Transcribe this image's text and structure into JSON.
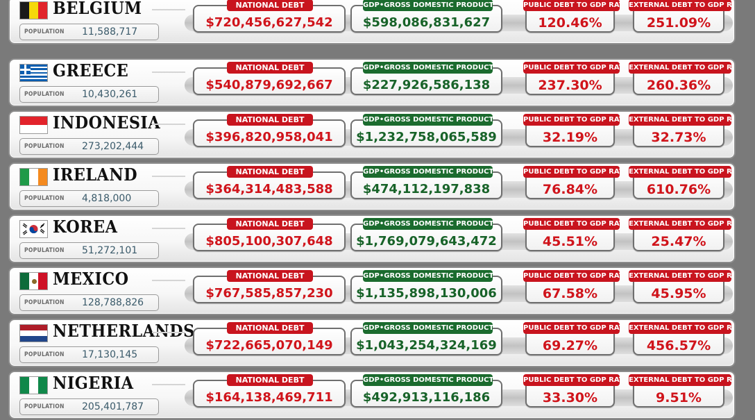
{
  "labels": {
    "population": "POPULATION",
    "national_debt": "NATIONAL DEBT",
    "gdp": "GDP•GROSS DOMESTIC PRODUCT",
    "public_ratio": "PUBLIC DEBT TO GDP RATIO",
    "external_ratio": "EXTERNAL DEBT TO GDP RATIO"
  },
  "colors": {
    "debt": "#d0141b",
    "gdp": "#186329",
    "badge_red": "#c8141e",
    "badge_green": "#1b6b2e"
  },
  "countries": [
    {
      "name": "BELGIUM",
      "flag": "belgium-flag-icon",
      "population": "11,588,717",
      "national_debt": "$720,456,627,542",
      "gdp": "$598,086,831,627",
      "public_debt_ratio": "120.46%",
      "external_debt_ratio": "251.09%"
    },
    {
      "name": "GREECE",
      "flag": "greece-flag-icon",
      "population": "10,430,261",
      "national_debt": "$540,879,692,667",
      "gdp": "$227,926,586,138",
      "public_debt_ratio": "237.30%",
      "external_debt_ratio": "260.36%"
    },
    {
      "name": "INDONESIA",
      "flag": "indonesia-flag-icon",
      "population": "273,202,444",
      "national_debt": "$396,820,958,041",
      "gdp": "$1,232,758,065,589",
      "public_debt_ratio": "32.19%",
      "external_debt_ratio": "32.73%"
    },
    {
      "name": "IRELAND",
      "flag": "ireland-flag-icon",
      "population": "4,818,000",
      "national_debt": "$364,314,483,588",
      "gdp": "$474,112,197,838",
      "public_debt_ratio": "76.84%",
      "external_debt_ratio": "610.76%"
    },
    {
      "name": "KOREA",
      "flag": "korea-flag-icon",
      "population": "51,272,101",
      "national_debt": "$805,100,307,648",
      "gdp": "$1,769,079,643,472",
      "public_debt_ratio": "45.51%",
      "external_debt_ratio": "25.47%"
    },
    {
      "name": "MEXICO",
      "flag": "mexico-flag-icon",
      "population": "128,788,826",
      "national_debt": "$767,585,857,230",
      "gdp": "$1,135,898,130,006",
      "public_debt_ratio": "67.58%",
      "external_debt_ratio": "45.95%"
    },
    {
      "name": "NETHERLANDS",
      "flag": "netherlands-flag-icon",
      "population": "17,130,145",
      "national_debt": "$722,665,070,149",
      "gdp": "$1,043,254,324,169",
      "public_debt_ratio": "69.27%",
      "external_debt_ratio": "456.57%"
    },
    {
      "name": "NIGERIA",
      "flag": "nigeria-flag-icon",
      "population": "205,401,787",
      "national_debt": "$164,138,469,711",
      "gdp": "$492,913,116,186",
      "public_debt_ratio": "33.30%",
      "external_debt_ratio": "9.51%"
    }
  ]
}
